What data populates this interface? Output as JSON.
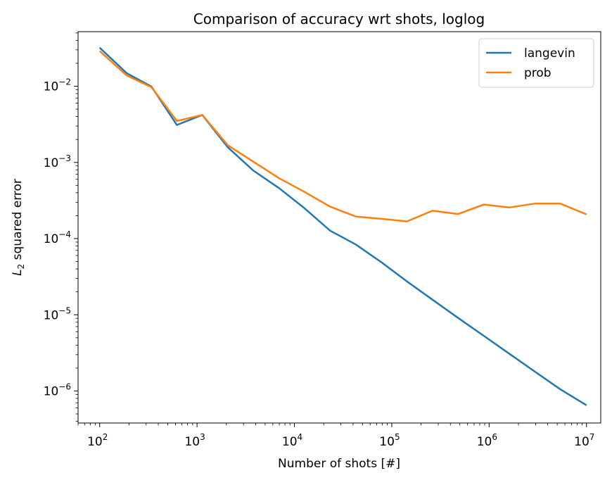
{
  "chart_data": {
    "type": "line",
    "title": "Comparison of accuracy wrt shots, loglog",
    "xlabel": "Number of shots [#]",
    "ylabel_base": "L",
    "ylabel_sub": "2",
    "ylabel_rest": " squared error",
    "xscale": "log",
    "yscale": "log",
    "xlim": [
      60,
      14000000
    ],
    "ylim": [
      3.8e-07,
      0.052
    ],
    "x_ticks": [
      {
        "base": "10",
        "exp": "2",
        "value": 100
      },
      {
        "base": "10",
        "exp": "3",
        "value": 1000
      },
      {
        "base": "10",
        "exp": "4",
        "value": 10000
      },
      {
        "base": "10",
        "exp": "5",
        "value": 100000
      },
      {
        "base": "10",
        "exp": "6",
        "value": 1000000
      },
      {
        "base": "10",
        "exp": "7",
        "value": 10000000
      }
    ],
    "y_ticks": [
      {
        "base": "10",
        "exp": "−2",
        "value": 0.01
      },
      {
        "base": "10",
        "exp": "−3",
        "value": 0.001
      },
      {
        "base": "10",
        "exp": "−4",
        "value": 0.0001
      },
      {
        "base": "10",
        "exp": "−5",
        "value": 1e-05
      },
      {
        "base": "10",
        "exp": "−6",
        "value": 1e-06
      }
    ],
    "grid": false,
    "legend": "top-right",
    "x": [
      100,
      190,
      340,
      620,
      1130,
      2070,
      3790,
      6950,
      12700,
      23300,
      42500,
      78000,
      143000,
      262000,
      480000,
      880000,
      1600000,
      2940000,
      5390000,
      10000000
    ],
    "series": [
      {
        "name": "langevin",
        "color": "#1f77b4",
        "values": [
          0.032,
          0.0148,
          0.0099,
          0.0031,
          0.0042,
          0.00158,
          0.00078,
          0.00046,
          0.00025,
          0.000127,
          8.4e-05,
          4.9e-05,
          2.75e-05,
          1.58e-05,
          9.1e-06,
          5.3e-06,
          3.1e-06,
          1.8e-06,
          1.05e-06,
          6.5e-07
        ]
      },
      {
        "name": "prob",
        "color": "#ff7f0e",
        "values": [
          0.029,
          0.0138,
          0.0097,
          0.0035,
          0.0042,
          0.00168,
          0.00102,
          0.00062,
          0.00041,
          0.000262,
          0.000195,
          0.000182,
          0.000168,
          0.000232,
          0.00021,
          0.00028,
          0.000256,
          0.000288,
          0.000288,
          0.000208
        ]
      }
    ]
  }
}
